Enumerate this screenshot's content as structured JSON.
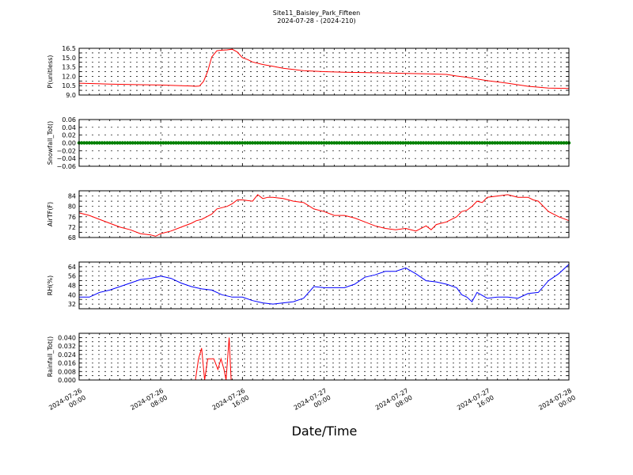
{
  "header": {
    "title": "Site11_Baisley_Park_Fifteen",
    "subtitle": "2024-07-28 - (2024-210)"
  },
  "xaxis": {
    "label": "Date/Time",
    "ticks": [
      {
        "line1": "2024-07-26",
        "line2": "00:00"
      },
      {
        "line1": "2024-07-26",
        "line2": "08:00"
      },
      {
        "line1": "2024-07-26",
        "line2": "16:00"
      },
      {
        "line1": "2024-07-27",
        "line2": "00:00"
      },
      {
        "line1": "2024-07-27",
        "line2": "08:00"
      },
      {
        "line1": "2024-07-27",
        "line2": "16:00"
      },
      {
        "line1": "2024-07-28",
        "line2": "00:00"
      }
    ]
  },
  "chart_data": [
    {
      "type": "line",
      "ylabel": "P(unitless)",
      "ylim": [
        9.0,
        16.5
      ],
      "yticks": [
        "9.0",
        "10.5",
        "12.0",
        "13.5",
        "15.0",
        "16.5"
      ],
      "yticks_minor": [
        9.75,
        11.25,
        12.75,
        14.25,
        15.75
      ],
      "color": "#ff0000",
      "xlim_hours": [
        0,
        48
      ],
      "x_hours": [
        0,
        3,
        6,
        8,
        10,
        11,
        11.4,
        11.8,
        12.2,
        12.6,
        13,
        13.5,
        14,
        14.5,
        15,
        15.5,
        16,
        16.5,
        17,
        18,
        19,
        20,
        21,
        22,
        24,
        26,
        30,
        34,
        36,
        37,
        38,
        40,
        42,
        44,
        46,
        48
      ],
      "y": [
        10.9,
        10.75,
        10.65,
        10.6,
        10.5,
        10.45,
        10.4,
        10.45,
        11.2,
        12.8,
        15.1,
        16.1,
        16.2,
        16.25,
        16.35,
        15.9,
        15.0,
        14.7,
        14.3,
        13.9,
        13.6,
        13.3,
        13.1,
        12.9,
        12.75,
        12.65,
        12.55,
        12.4,
        12.3,
        12.05,
        11.85,
        11.3,
        10.9,
        10.4,
        10.1,
        10.05
      ]
    },
    {
      "type": "scatter",
      "ylabel": "Snowfall_Tot()",
      "ylim": [
        -0.06,
        0.06
      ],
      "yticks": [
        "−0.06",
        "−0.04",
        "−0.02",
        "0.00",
        "0.02",
        "0.04",
        "0.06"
      ],
      "color": "#008000",
      "xlim_hours": [
        0,
        48
      ],
      "x_range_hours": [
        0,
        48
      ],
      "value": 0.0
    },
    {
      "type": "line",
      "ylabel": "AirTF(F)",
      "ylim": [
        68,
        86
      ],
      "yticks": [
        "68",
        "72",
        "76",
        "80",
        "84"
      ],
      "yticks_minor": [
        70,
        74,
        78,
        82
      ],
      "color": "#ff0000",
      "xlim_hours": [
        0,
        48
      ],
      "x_hours": [
        0,
        1,
        2,
        3,
        4,
        5,
        6,
        7,
        7.5,
        8,
        9,
        10,
        11,
        11.5,
        12,
        12.5,
        13,
        13.5,
        14,
        14.5,
        15,
        15.5,
        16,
        17,
        17.5,
        18,
        18.5,
        19,
        20,
        21,
        22,
        23,
        24,
        25,
        26,
        27,
        28,
        29,
        30,
        31,
        32,
        33,
        34,
        34.5,
        35,
        36,
        37,
        37.5,
        38,
        38.5,
        39,
        39.5,
        40,
        41,
        42,
        43,
        44,
        44.5,
        45,
        46,
        47,
        48
      ],
      "y": [
        77.5,
        76.5,
        75,
        73.5,
        72,
        71,
        69.5,
        69,
        68.5,
        69.5,
        70.5,
        72,
        73.5,
        74.5,
        75,
        76,
        77,
        79,
        79.5,
        80,
        81,
        82.5,
        82.5,
        82,
        84.5,
        83,
        83.5,
        83.5,
        83,
        82,
        81.5,
        79,
        78,
        76.5,
        76.5,
        75.5,
        74,
        72.5,
        71.5,
        71,
        71.5,
        70.5,
        72.5,
        71,
        73,
        74,
        76,
        78,
        78.5,
        80,
        82,
        81.5,
        83.5,
        84,
        84.5,
        83.5,
        83.5,
        82.5,
        82,
        78,
        76,
        74.5
      ]
    },
    {
      "type": "line",
      "ylabel": "RH(%)",
      "ylim": [
        28,
        68
      ],
      "yticks": [
        "32",
        "40",
        "48",
        "56",
        "64"
      ],
      "yticks_minor": [
        28,
        36,
        44,
        52,
        60,
        68
      ],
      "color": "#0000ff",
      "xlim_hours": [
        0,
        48
      ],
      "x_hours": [
        0,
        1,
        2,
        3,
        4,
        5,
        6,
        7,
        8,
        9,
        10,
        11,
        12,
        13,
        14,
        15,
        16,
        17,
        18,
        19,
        20,
        21,
        22,
        23,
        24,
        25,
        26,
        27,
        28,
        29,
        30,
        31,
        32,
        33,
        34,
        35,
        36,
        37,
        37.5,
        38,
        38.5,
        39,
        40,
        41,
        42,
        43,
        44,
        45,
        46,
        47,
        48
      ],
      "y": [
        38,
        38,
        42,
        44,
        47,
        50,
        53,
        54,
        56,
        54,
        50,
        47,
        45,
        44,
        40,
        38,
        38,
        35,
        33,
        32,
        33,
        34,
        37,
        47,
        46,
        46,
        46,
        49,
        55,
        57,
        60,
        60,
        63,
        58,
        52,
        51,
        49,
        46,
        40,
        38,
        34,
        42,
        37,
        38,
        38,
        37,
        41,
        42,
        52,
        58,
        66
      ]
    },
    {
      "type": "line",
      "ylabel": "Rainfall_Tot()",
      "ylim": [
        0,
        0.044
      ],
      "yticks": [
        "0.000",
        "0.008",
        "0.016",
        "0.024",
        "0.032",
        "0.040"
      ],
      "yticks_minor": [
        0.004,
        0.012,
        0.02,
        0.028,
        0.036
      ],
      "color": "#ff0000",
      "xlim_hours": [
        0,
        48
      ],
      "x_hours": [
        0,
        11.4,
        11.7,
        12.0,
        12.3,
        12.6,
        13.2,
        13.6,
        13.9,
        14.2,
        14.4,
        14.7,
        14.9,
        15.1,
        48
      ],
      "y": [
        0,
        0,
        0.02,
        0.03,
        0,
        0.02,
        0.02,
        0.01,
        0.02,
        0.01,
        0,
        0.04,
        0,
        0,
        0
      ]
    }
  ]
}
